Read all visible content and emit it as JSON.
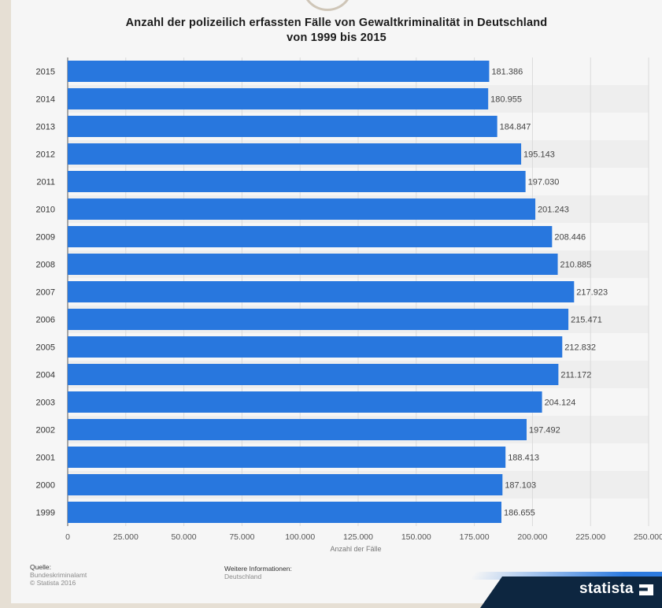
{
  "title_line1": "Anzahl der polizeilich erfassten Fälle von Gewaltkriminalität in Deutschland",
  "title_line2": "von 1999 bis 2015",
  "chart_data": {
    "type": "bar",
    "orientation": "horizontal",
    "categories": [
      "2015",
      "2014",
      "2013",
      "2012",
      "2011",
      "2010",
      "2009",
      "2008",
      "2007",
      "2006",
      "2005",
      "2004",
      "2003",
      "2002",
      "2001",
      "2000",
      "1999"
    ],
    "values": [
      181386,
      180955,
      184847,
      195143,
      197030,
      201243,
      208446,
      210885,
      217923,
      215471,
      212832,
      211172,
      204124,
      197492,
      188413,
      187103,
      186655
    ],
    "value_labels": [
      "181.386",
      "180.955",
      "184.847",
      "195.143",
      "197.030",
      "201.243",
      "208.446",
      "210.885",
      "217.923",
      "215.471",
      "212.832",
      "211.172",
      "204.124",
      "197.492",
      "188.413",
      "187.103",
      "186.655"
    ],
    "x_ticks": [
      "0",
      "25.000",
      "50.000",
      "75.000",
      "100.000",
      "125.000",
      "150.000",
      "175.000",
      "200.000",
      "225.000",
      "250.000"
    ],
    "xlim": [
      0,
      250000
    ],
    "xlabel": "Anzahl der Fälle",
    "ylabel": "",
    "grid": true,
    "bar_color": "#2877de"
  },
  "footer": {
    "source_label": "Quelle:",
    "source_name": "Bundeskriminalamt",
    "copyright": "© Statista 2016",
    "more_label": "Weitere Informationen:",
    "more_value": "Deutschland"
  },
  "brand": "statista"
}
